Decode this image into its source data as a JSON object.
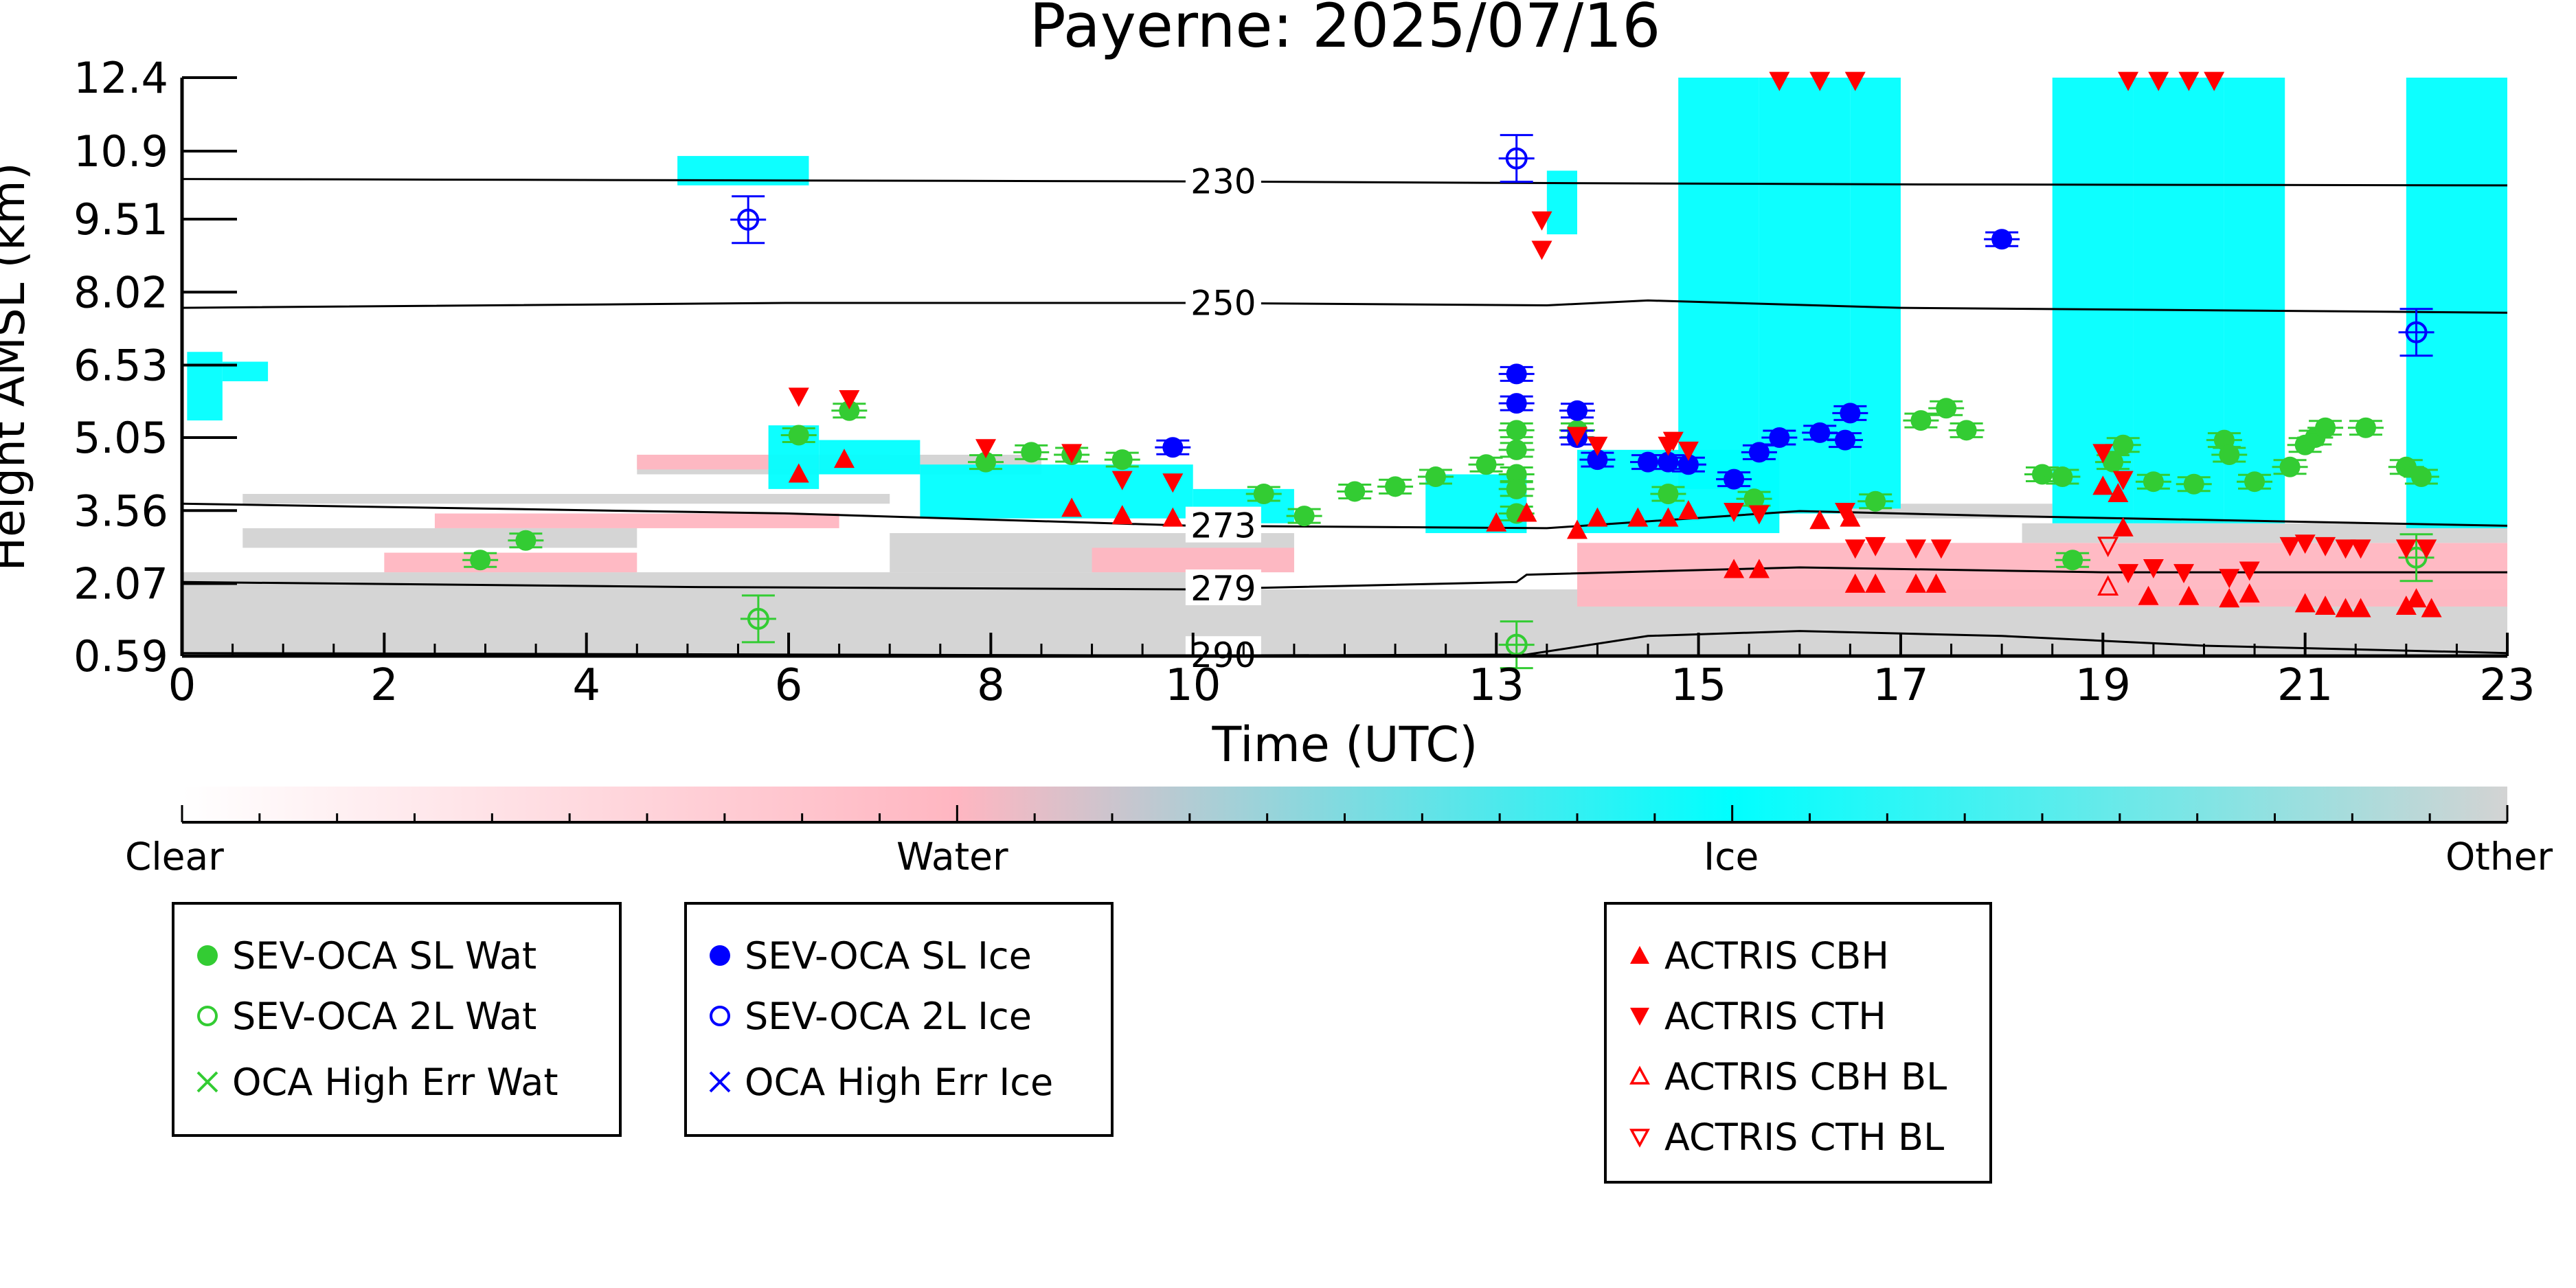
{
  "chart_data": {
    "type": "scatter",
    "title": "Payerne: 2025/07/16",
    "xlabel": "Time (UTC)",
    "ylabel": "Height AMSL (km)",
    "xlim": [
      0,
      23
    ],
    "ylim": [
      0.59,
      12.4
    ],
    "xticks": [
      "0",
      "2",
      "4",
      "6",
      "8",
      "10",
      "13",
      "15",
      "17",
      "19",
      "21",
      "23"
    ],
    "xtick_values": [
      0,
      2,
      4,
      6,
      8,
      10,
      13,
      15,
      17,
      19,
      21,
      23
    ],
    "yticks": [
      "0.59",
      "2.07",
      "3.56",
      "5.05",
      "6.53",
      "8.02",
      "9.51",
      "10.9",
      "12.4"
    ],
    "ytick_values": [
      0.59,
      2.07,
      3.56,
      5.05,
      6.53,
      8.02,
      9.51,
      10.9,
      12.4
    ],
    "colorbar": {
      "labels": [
        "Clear",
        "Water",
        "Ice",
        "Other"
      ],
      "colors": [
        "#ffffff",
        "#ffb6c1",
        "#00ffff",
        "#d3d3d3"
      ]
    },
    "isotherms": [
      {
        "label": "230",
        "label_x": 10.3,
        "points": [
          [
            0,
            10.33
          ],
          [
            6,
            10.3
          ],
          [
            10,
            10.28
          ],
          [
            13.2,
            10.25
          ],
          [
            17,
            10.22
          ],
          [
            23,
            10.2
          ]
        ]
      },
      {
        "label": "250",
        "label_x": 10.3,
        "points": [
          [
            0,
            7.7
          ],
          [
            6,
            7.8
          ],
          [
            10,
            7.8
          ],
          [
            13.5,
            7.75
          ],
          [
            14.5,
            7.85
          ],
          [
            17,
            7.7
          ],
          [
            23,
            7.6
          ]
        ]
      },
      {
        "label": "273",
        "label_x": 10.3,
        "points": [
          [
            0,
            3.7
          ],
          [
            6,
            3.5
          ],
          [
            10,
            3.25
          ],
          [
            13.5,
            3.2
          ],
          [
            16,
            3.55
          ],
          [
            18,
            3.45
          ],
          [
            23,
            3.25
          ]
        ]
      },
      {
        "label": "279",
        "label_x": 10.3,
        "points": [
          [
            0,
            2.1
          ],
          [
            5,
            2.0
          ],
          [
            10,
            1.95
          ],
          [
            13.2,
            2.1
          ],
          [
            13.3,
            2.25
          ],
          [
            16,
            2.4
          ],
          [
            19,
            2.3
          ],
          [
            23,
            2.3
          ]
        ]
      },
      {
        "label": "290",
        "label_x": 10.3,
        "points": [
          [
            0,
            0.65
          ],
          [
            10,
            0.6
          ],
          [
            13.3,
            0.62
          ],
          [
            14.5,
            1.0
          ],
          [
            16,
            1.1
          ],
          [
            18,
            1.0
          ],
          [
            20,
            0.8
          ],
          [
            23,
            0.65
          ]
        ]
      }
    ],
    "regions": [
      {
        "class": "Other",
        "color": "#d3d3d3",
        "rect": [
          0,
          23,
          0.59,
          1.95
        ]
      },
      {
        "class": "Other",
        "color": "#d3d3d3",
        "rect": [
          0,
          10.5,
          1.95,
          2.3
        ]
      },
      {
        "class": "Water",
        "color": "#ffb6c1",
        "rect": [
          2.0,
          4.5,
          2.3,
          2.7
        ]
      },
      {
        "class": "Other",
        "color": "#d3d3d3",
        "rect": [
          0.6,
          7.0,
          3.7,
          3.9
        ]
      },
      {
        "class": "Other",
        "color": "#d3d3d3",
        "rect": [
          0.6,
          4.5,
          2.8,
          3.2
        ]
      },
      {
        "class": "Water",
        "color": "#ffb6c1",
        "rect": [
          2.5,
          6.5,
          3.2,
          3.5
        ]
      },
      {
        "class": "Other",
        "color": "#d3d3d3",
        "rect": [
          7.0,
          11.0,
          2.3,
          3.1
        ]
      },
      {
        "class": "Water",
        "color": "#ffb6c1",
        "rect": [
          9.0,
          11.0,
          2.3,
          2.8
        ]
      },
      {
        "class": "Other",
        "color": "#d3d3d3",
        "rect": [
          4.5,
          8.5,
          4.3,
          4.7
        ]
      },
      {
        "class": "Water",
        "color": "#ffb6c1",
        "rect": [
          4.5,
          7.0,
          4.4,
          4.7
        ]
      },
      {
        "class": "Water",
        "color": "#ffb6c1",
        "rect": [
          13.8,
          23,
          1.6,
          2.9
        ]
      },
      {
        "class": "Other",
        "color": "#d3d3d3",
        "rect": [
          18.2,
          23,
          2.9,
          3.3
        ]
      },
      {
        "class": "Other",
        "color": "#d3d3d3",
        "rect": [
          16.5,
          18.5,
          3.4,
          3.7
        ]
      },
      {
        "class": "Ice",
        "color": "#00ffff",
        "rect": [
          0.05,
          0.4,
          5.4,
          6.8
        ]
      },
      {
        "class": "Ice",
        "color": "#00ffff",
        "rect": [
          0.4,
          0.85,
          6.2,
          6.6
        ]
      },
      {
        "class": "Ice",
        "color": "#00ffff",
        "rect": [
          4.9,
          6.2,
          10.2,
          10.8
        ]
      },
      {
        "class": "Ice",
        "color": "#00ffff",
        "rect": [
          5.8,
          6.3,
          4.0,
          5.3
        ]
      },
      {
        "class": "Ice",
        "color": "#00ffff",
        "rect": [
          6.3,
          7.3,
          4.3,
          5.0
        ]
      },
      {
        "class": "Ice",
        "color": "#00ffff",
        "rect": [
          7.3,
          10.0,
          3.4,
          4.5
        ]
      },
      {
        "class": "Ice",
        "color": "#00ffff",
        "rect": [
          10.0,
          11.0,
          3.3,
          4.0
        ]
      },
      {
        "class": "Ice",
        "color": "#00ffff",
        "rect": [
          12.3,
          13.3,
          3.1,
          4.3
        ]
      },
      {
        "class": "Ice",
        "color": "#00ffff",
        "rect": [
          13.5,
          13.8,
          9.2,
          10.5
        ]
      },
      {
        "class": "Ice",
        "color": "#00ffff",
        "rect": [
          13.8,
          15.8,
          3.1,
          4.8
        ]
      },
      {
        "class": "Ice",
        "color": "#00ffff",
        "rect": [
          14.8,
          15.6,
          4.0,
          12.4
        ]
      },
      {
        "class": "Ice",
        "color": "#00ffff",
        "rect": [
          15.6,
          16.5,
          3.5,
          12.4
        ]
      },
      {
        "class": "Ice",
        "color": "#00ffff",
        "rect": [
          16.5,
          17.0,
          3.6,
          12.4
        ]
      },
      {
        "class": "Ice",
        "color": "#00ffff",
        "rect": [
          18.5,
          19.3,
          3.3,
          12.4
        ]
      },
      {
        "class": "Ice",
        "color": "#00ffff",
        "rect": [
          19.3,
          20.2,
          3.3,
          12.4
        ]
      },
      {
        "class": "Ice",
        "color": "#00ffff",
        "rect": [
          20.2,
          20.8,
          3.3,
          12.4
        ]
      },
      {
        "class": "Ice",
        "color": "#00ffff",
        "rect": [
          22.0,
          23.0,
          3.2,
          12.4
        ]
      }
    ],
    "series": [
      {
        "name": "SEV-OCA SL Wat",
        "color": "#33cc33",
        "marker": "circle-filled",
        "points": [
          [
            2.95,
            2.55
          ],
          [
            3.4,
            2.95
          ],
          [
            6.1,
            5.1
          ],
          [
            6.6,
            5.6
          ],
          [
            7.95,
            4.55
          ],
          [
            8.4,
            4.75
          ],
          [
            8.8,
            4.7
          ],
          [
            9.3,
            4.6
          ],
          [
            10.7,
            3.9
          ],
          [
            11.1,
            3.45
          ],
          [
            11.6,
            3.95
          ],
          [
            12.0,
            4.05
          ],
          [
            12.4,
            4.25
          ],
          [
            12.9,
            4.5
          ],
          [
            13.2,
            4.8
          ],
          [
            13.2,
            5.2
          ],
          [
            13.2,
            4.3
          ],
          [
            13.2,
            4.0
          ],
          [
            13.2,
            3.5
          ],
          [
            13.8,
            5.2
          ],
          [
            14.7,
            3.9
          ],
          [
            15.55,
            3.8
          ],
          [
            16.75,
            3.75
          ],
          [
            17.2,
            5.4
          ],
          [
            17.45,
            5.65
          ],
          [
            17.65,
            5.2
          ],
          [
            18.4,
            4.3
          ],
          [
            18.6,
            4.25
          ],
          [
            18.7,
            2.55
          ],
          [
            19.1,
            4.55
          ],
          [
            19.2,
            4.9
          ],
          [
            19.5,
            4.15
          ],
          [
            19.9,
            4.1
          ],
          [
            20.2,
            5.0
          ],
          [
            20.25,
            4.7
          ],
          [
            20.5,
            4.15
          ],
          [
            20.85,
            4.45
          ],
          [
            21.0,
            4.9
          ],
          [
            21.1,
            5.05
          ],
          [
            21.2,
            5.25
          ],
          [
            21.6,
            5.25
          ],
          [
            22.0,
            4.45
          ],
          [
            22.15,
            4.25
          ]
        ]
      },
      {
        "name": "SEV-OCA 2L Wat",
        "color": "#33cc33",
        "marker": "circle-open",
        "points": [
          [
            5.7,
            1.35
          ],
          [
            13.2,
            0.82
          ],
          [
            22.1,
            2.6
          ]
        ]
      },
      {
        "name": "OCA High Err Wat",
        "color": "#33cc33",
        "marker": "x",
        "points": []
      },
      {
        "name": "SEV-OCA SL Ice",
        "color": "#0000ff",
        "marker": "circle-filled",
        "points": [
          [
            9.8,
            4.85
          ],
          [
            13.2,
            6.35
          ],
          [
            13.2,
            5.75
          ],
          [
            13.8,
            5.6
          ],
          [
            13.8,
            5.05
          ],
          [
            14.0,
            4.6
          ],
          [
            14.5,
            4.55
          ],
          [
            14.7,
            4.55
          ],
          [
            14.9,
            4.5
          ],
          [
            15.35,
            4.2
          ],
          [
            15.6,
            4.75
          ],
          [
            15.8,
            5.05
          ],
          [
            16.2,
            5.15
          ],
          [
            16.45,
            5.0
          ],
          [
            16.5,
            5.55
          ],
          [
            18.0,
            9.1
          ]
        ]
      },
      {
        "name": "SEV-OCA 2L Ice",
        "color": "#0000ff",
        "marker": "circle-open",
        "points": [
          [
            5.6,
            9.5
          ],
          [
            13.2,
            10.75
          ],
          [
            22.1,
            7.2
          ]
        ]
      },
      {
        "name": "OCA High Err Ice",
        "color": "#0000ff",
        "marker": "x",
        "points": []
      },
      {
        "name": "ACTRIS CBH",
        "color": "#ff0000",
        "marker": "triangle-up-filled",
        "points": [
          [
            6.1,
            4.3
          ],
          [
            6.55,
            4.6
          ],
          [
            8.8,
            3.6
          ],
          [
            9.3,
            3.45
          ],
          [
            9.8,
            3.4
          ],
          [
            13.0,
            3.3
          ],
          [
            13.3,
            3.5
          ],
          [
            13.8,
            3.15
          ],
          [
            14.0,
            3.4
          ],
          [
            14.4,
            3.4
          ],
          [
            14.7,
            3.4
          ],
          [
            14.9,
            3.55
          ],
          [
            15.35,
            2.35
          ],
          [
            15.6,
            2.35
          ],
          [
            16.2,
            3.35
          ],
          [
            16.5,
            3.4
          ],
          [
            16.55,
            2.05
          ],
          [
            16.75,
            2.05
          ],
          [
            17.15,
            2.05
          ],
          [
            17.35,
            2.05
          ],
          [
            19.0,
            4.05
          ],
          [
            19.15,
            3.9
          ],
          [
            19.2,
            3.2
          ],
          [
            19.45,
            1.8
          ],
          [
            19.85,
            1.8
          ],
          [
            20.25,
            1.75
          ],
          [
            20.45,
            1.85
          ],
          [
            21.0,
            1.65
          ],
          [
            21.2,
            1.6
          ],
          [
            21.4,
            1.55
          ],
          [
            21.55,
            1.55
          ],
          [
            22.0,
            1.6
          ],
          [
            22.1,
            1.75
          ],
          [
            22.25,
            1.55
          ]
        ]
      },
      {
        "name": "ACTRIS CTH",
        "color": "#ff0000",
        "marker": "triangle-down-filled",
        "points": [
          [
            6.1,
            5.9
          ],
          [
            6.6,
            5.85
          ],
          [
            7.95,
            4.85
          ],
          [
            8.8,
            4.75
          ],
          [
            9.3,
            4.2
          ],
          [
            9.8,
            4.15
          ],
          [
            13.45,
            9.5
          ],
          [
            13.45,
            8.9
          ],
          [
            13.8,
            5.1
          ],
          [
            14.0,
            4.9
          ],
          [
            14.7,
            4.9
          ],
          [
            14.75,
            5.0
          ],
          [
            14.9,
            4.8
          ],
          [
            15.35,
            3.55
          ],
          [
            15.6,
            3.5
          ],
          [
            16.45,
            3.55
          ],
          [
            16.55,
            2.8
          ],
          [
            16.75,
            2.85
          ],
          [
            17.15,
            2.8
          ],
          [
            17.4,
            2.8
          ],
          [
            19.0,
            4.75
          ],
          [
            19.2,
            4.2
          ],
          [
            19.25,
            2.3
          ],
          [
            19.5,
            2.4
          ],
          [
            19.8,
            2.3
          ],
          [
            20.25,
            2.2
          ],
          [
            20.45,
            2.35
          ],
          [
            20.85,
            2.85
          ],
          [
            21.0,
            2.9
          ],
          [
            21.2,
            2.85
          ],
          [
            21.4,
            2.8
          ],
          [
            21.55,
            2.8
          ],
          [
            22.0,
            2.8
          ],
          [
            22.2,
            2.8
          ],
          [
            15.8,
            12.35
          ],
          [
            16.2,
            12.35
          ],
          [
            16.55,
            12.35
          ],
          [
            19.25,
            12.35
          ],
          [
            19.55,
            12.35
          ],
          [
            19.85,
            12.35
          ],
          [
            20.1,
            12.35
          ]
        ]
      },
      {
        "name": "ACTRIS CBH BL",
        "color": "#ff0000",
        "marker": "triangle-up-open",
        "points": [
          [
            19.05,
            2.0
          ]
        ]
      },
      {
        "name": "ACTRIS CTH BL",
        "color": "#ff0000",
        "marker": "triangle-down-open",
        "points": [
          [
            19.05,
            2.85
          ]
        ]
      }
    ]
  },
  "legend_groups": [
    {
      "items": [
        {
          "label": "SEV-OCA SL Wat",
          "color": "#33cc33",
          "marker": "circle-filled"
        },
        {
          "label": "SEV-OCA 2L Wat",
          "color": "#33cc33",
          "marker": "circle-open"
        },
        {
          "label": "OCA High Err Wat",
          "color": "#33cc33",
          "marker": "x"
        }
      ]
    },
    {
      "items": [
        {
          "label": "SEV-OCA SL Ice",
          "color": "#0000ff",
          "marker": "circle-filled"
        },
        {
          "label": "SEV-OCA 2L Ice",
          "color": "#0000ff",
          "marker": "circle-open"
        },
        {
          "label": "OCA High Err Ice",
          "color": "#0000ff",
          "marker": "x"
        }
      ]
    },
    {
      "items": [
        {
          "label": "ACTRIS CBH",
          "color": "#ff0000",
          "marker": "triangle-up-filled"
        },
        {
          "label": "ACTRIS CTH",
          "color": "#ff0000",
          "marker": "triangle-down-filled"
        },
        {
          "label": "ACTRIS CBH BL",
          "color": "#ff0000",
          "marker": "triangle-up-open"
        },
        {
          "label": "ACTRIS CTH BL",
          "color": "#ff0000",
          "marker": "triangle-down-open"
        }
      ]
    }
  ]
}
